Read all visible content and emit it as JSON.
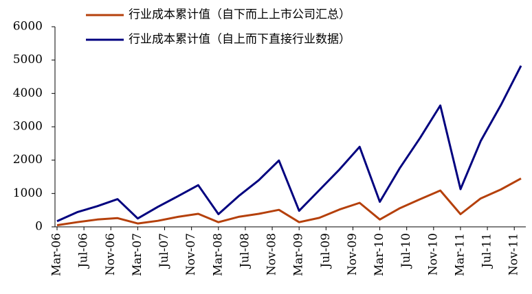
{
  "chart_data": {
    "type": "line",
    "x": [
      0,
      3,
      6,
      9,
      12,
      15,
      18,
      21,
      24,
      27,
      30,
      33,
      36,
      39,
      42,
      45,
      48,
      51,
      54,
      57,
      60,
      63,
      66,
      69
    ],
    "xlim": [
      0,
      69
    ],
    "xticks": [
      {
        "value": 0,
        "label": "Mar-06"
      },
      {
        "value": 4,
        "label": "Jul-06"
      },
      {
        "value": 8,
        "label": "Nov-06"
      },
      {
        "value": 12,
        "label": "Mar-07"
      },
      {
        "value": 16,
        "label": "Jul-07"
      },
      {
        "value": 20,
        "label": "Nov-07"
      },
      {
        "value": 24,
        "label": "Mar-08"
      },
      {
        "value": 28,
        "label": "Jul-08"
      },
      {
        "value": 32,
        "label": "Nov-08"
      },
      {
        "value": 36,
        "label": "Mar-09"
      },
      {
        "value": 40,
        "label": "Jul-09"
      },
      {
        "value": 44,
        "label": "Nov-09"
      },
      {
        "value": 48,
        "label": "Mar-10"
      },
      {
        "value": 52,
        "label": "Jul-10"
      },
      {
        "value": 56,
        "label": "Nov-10"
      },
      {
        "value": 60,
        "label": "Mar-11"
      },
      {
        "value": 64,
        "label": "Jul-11"
      },
      {
        "value": 68,
        "label": "Nov-11"
      }
    ],
    "ylim": [
      0,
      6000
    ],
    "yticks": [
      0,
      1000,
      2000,
      3000,
      4000,
      5000,
      6000
    ],
    "series": [
      {
        "name": "行业成本累计值（自下而上上市公司汇总）",
        "color": "#b5400b",
        "values": [
          50,
          140,
          220,
          260,
          100,
          180,
          300,
          390,
          140,
          300,
          390,
          510,
          140,
          270,
          520,
          720,
          220,
          560,
          830,
          1090,
          380,
          850,
          1120,
          1450
        ]
      },
      {
        "name": "行业成本累计值（自上而下直接行业数据）",
        "color": "#00007f",
        "values": [
          170,
          440,
          620,
          830,
          250,
          600,
          920,
          1250,
          380,
          920,
          1400,
          1990,
          480,
          1100,
          1720,
          2400,
          750,
          1770,
          2670,
          3640,
          1130,
          2570,
          3650,
          4830
        ]
      }
    ]
  }
}
